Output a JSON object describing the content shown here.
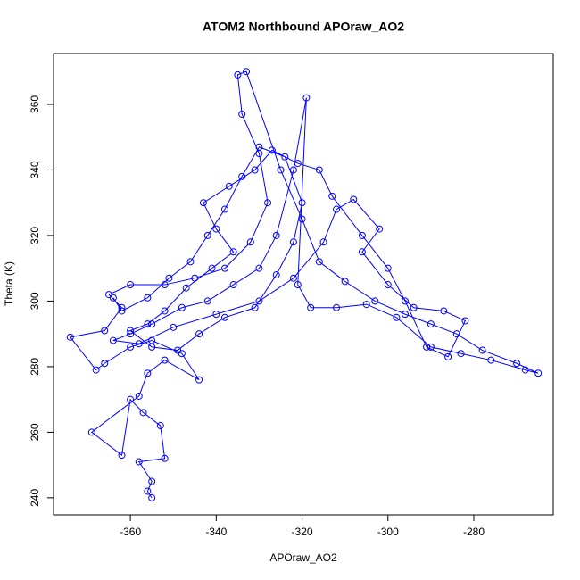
{
  "chart_data": {
    "type": "line",
    "title": "ATOM2 Northbound APOraw_AO2",
    "x_label": "APOraw_AO2",
    "y_label": "Theta (K)",
    "color": "#0000ff",
    "markers": true,
    "xlim": [
      -377.9,
      -261.5
    ],
    "xticks": [
      -360,
      -340,
      -320,
      -300,
      -280
    ],
    "ylim": [
      234.8,
      375.5
    ],
    "yticks": [
      240,
      260,
      280,
      300,
      320,
      340,
      360
    ],
    "x": [
      -355,
      -356,
      -355,
      -358,
      -352,
      -353,
      -357,
      -360,
      -362,
      -369,
      -358,
      -356,
      -352,
      -344,
      -348,
      -355,
      -360,
      -366,
      -368,
      -374,
      -366,
      -362,
      -365,
      -360,
      -352,
      -345,
      -338,
      -332,
      -328,
      -330,
      -334,
      -335,
      -333,
      -325,
      -320,
      -316,
      -310,
      -303,
      -296,
      -290,
      -284,
      -278,
      -270,
      -265,
      -268,
      -276,
      -283,
      -290,
      -298,
      -305,
      -312,
      -318,
      -321,
      -319,
      -322,
      -326,
      -330,
      -336,
      -342,
      -348,
      -355,
      -360,
      -364,
      -358,
      -350,
      -340,
      -330,
      -322,
      -315,
      -312,
      -308,
      -302,
      -306,
      -300,
      -294,
      -287,
      -282,
      -286,
      -291,
      -296,
      -300,
      -306,
      -313,
      -316,
      -321,
      -327,
      -331,
      -337,
      -343,
      -340,
      -336,
      -341,
      -347,
      -352,
      -356,
      -360,
      -355,
      -349,
      -344,
      -338,
      -331,
      -326,
      -322,
      -320,
      -324,
      -330,
      -334,
      -338,
      -342,
      -346,
      -351,
      -356,
      -362,
      -364
    ],
    "values": [
      240,
      242,
      245,
      251,
      252,
      262,
      266,
      270,
      253,
      260,
      271,
      278,
      282,
      276,
      284,
      288,
      286,
      281,
      279,
      289,
      291,
      298,
      302,
      305,
      305,
      307,
      310,
      318,
      330,
      345,
      357,
      369,
      370,
      340,
      325,
      312,
      306,
      300,
      296,
      293,
      290,
      285,
      281,
      278,
      279,
      282,
      284,
      286,
      295,
      299,
      298,
      298,
      305,
      362,
      340,
      320,
      310,
      305,
      300,
      298,
      293,
      290,
      288,
      287,
      292,
      296,
      300,
      307,
      318,
      328,
      331,
      322,
      315,
      305,
      298,
      297,
      294,
      283,
      286,
      300,
      310,
      320,
      332,
      340,
      342,
      346,
      340,
      335,
      330,
      322,
      315,
      310,
      304,
      297,
      293,
      291,
      286,
      285,
      290,
      295,
      298,
      308,
      318,
      330,
      344,
      347,
      338,
      328,
      320,
      312,
      307,
      301,
      297,
      301
    ]
  }
}
